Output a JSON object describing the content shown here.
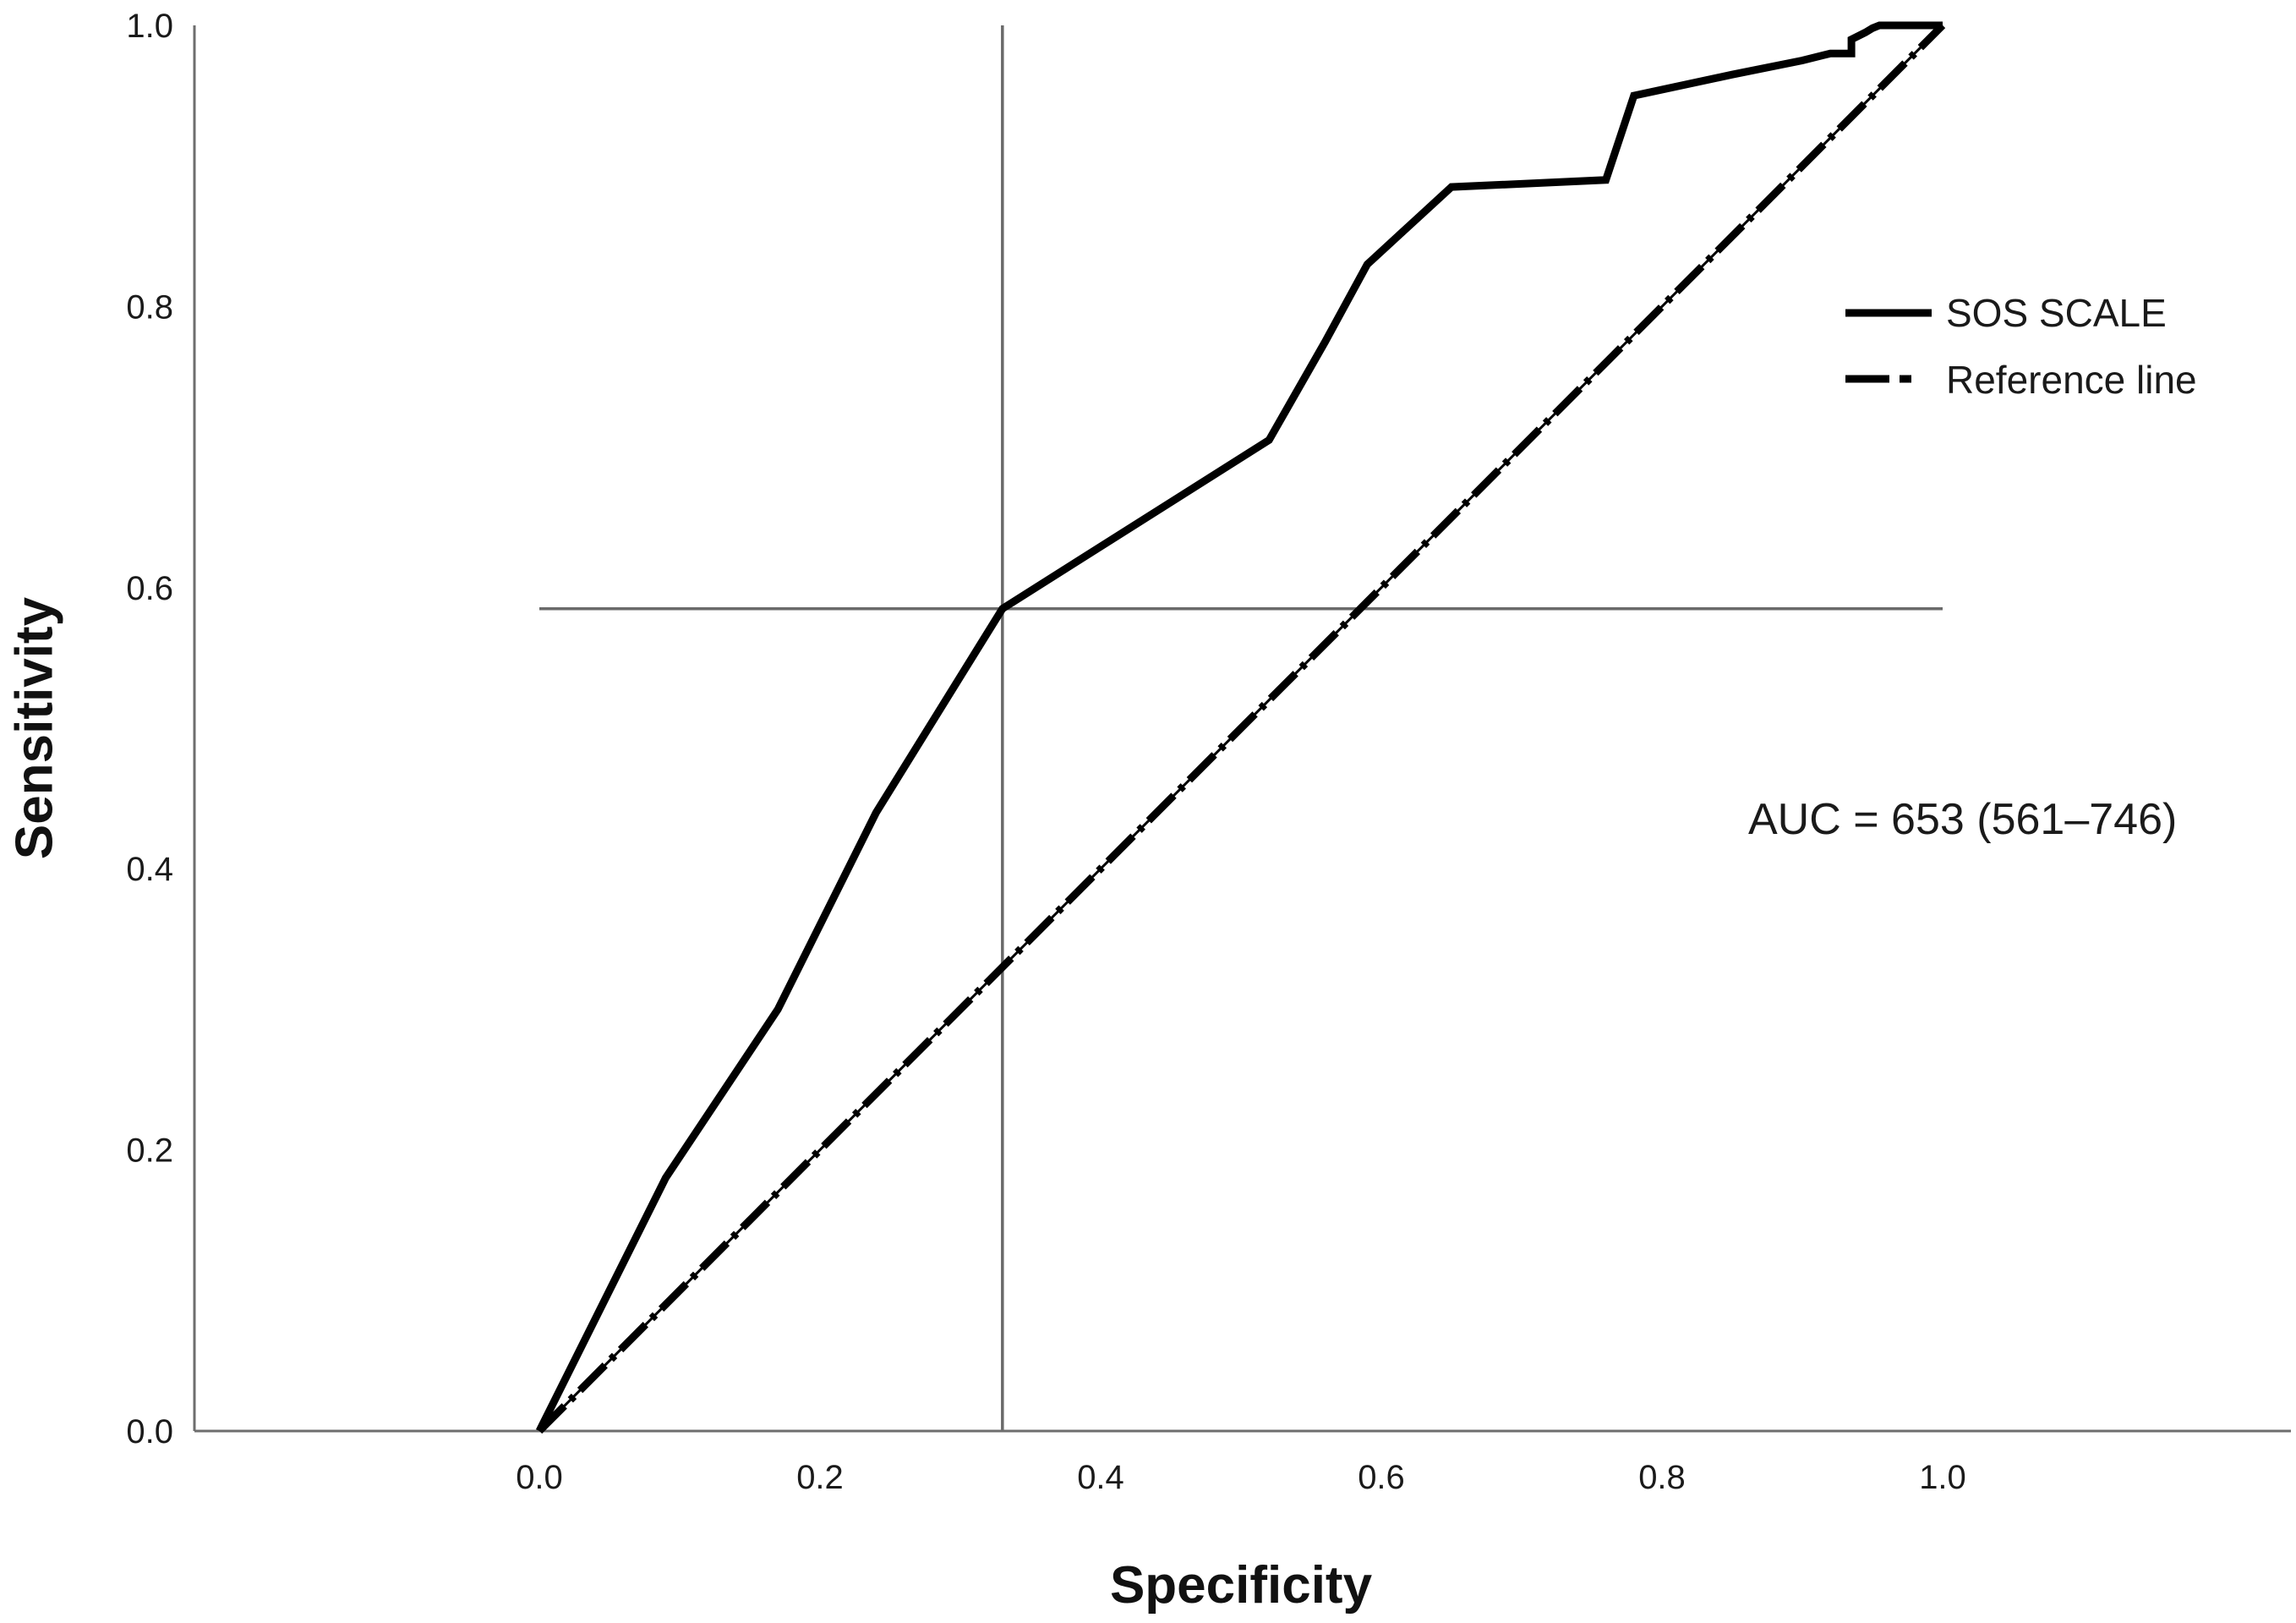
{
  "chart_data": {
    "type": "line",
    "xlabel": "Specificity",
    "ylabel": "Sensitivity",
    "xlim": [
      0.0,
      1.0
    ],
    "ylim": [
      0.0,
      1.0
    ],
    "xticks": [
      "0.0",
      "0.2",
      "0.4",
      "0.6",
      "0.8",
      "1.0"
    ],
    "yticks": [
      "0.0",
      "0.2",
      "0.4",
      "0.6",
      "0.8",
      "1.0"
    ],
    "grid": false,
    "legend_position": "right",
    "series": [
      {
        "name": "SOS SCALE",
        "style": "solid-thick",
        "color": "#000000",
        "x": [
          0.0,
          0.09,
          0.17,
          0.24,
          0.33,
          0.52,
          0.56,
          0.59,
          0.65,
          0.76,
          0.78,
          0.85,
          0.9,
          0.92,
          0.935,
          0.935,
          0.945,
          0.95,
          0.955,
          0.975,
          1.0
        ],
        "y": [
          0.0,
          0.18,
          0.3,
          0.44,
          0.585,
          0.705,
          0.775,
          0.83,
          0.885,
          0.89,
          0.95,
          0.965,
          0.975,
          0.98,
          0.98,
          0.99,
          0.995,
          0.998,
          1.0,
          1.0,
          1.0
        ]
      },
      {
        "name": "Reference line",
        "style": "dash-dot",
        "color": "#000000",
        "x": [
          0.0,
          1.0
        ],
        "y": [
          0.0,
          1.0
        ]
      }
    ],
    "reference_lines": [
      {
        "orientation": "vertical",
        "x": 0.33,
        "y_range": [
          0.0,
          1.0
        ]
      },
      {
        "orientation": "horizontal",
        "y": 0.585,
        "x_range": [
          0.0,
          1.0
        ]
      }
    ],
    "annotations": [
      {
        "text": "AUC = 653 (561–746)"
      }
    ]
  }
}
